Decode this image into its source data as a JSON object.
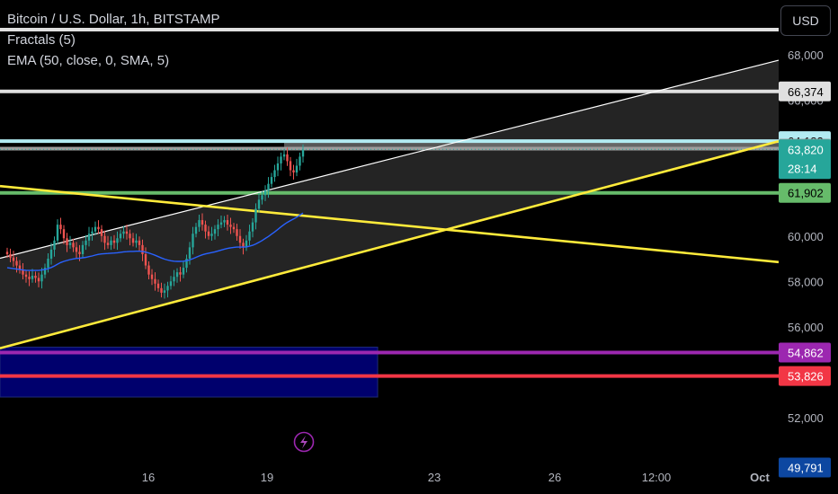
{
  "header": {
    "symbol_line": "Bitcoin / U.S. Dollar, 1h, BITSTAMP",
    "indicator_fractals": "Fractals (5)",
    "indicator_ema": "EMA (50, close, 0, SMA, 5)"
  },
  "currency_button": "USD",
  "colors": {
    "background": "#000000",
    "candle_up": "#26a69a",
    "candle_down": "#ef5350",
    "ema": "#2962ff",
    "yellow_line": "#ffeb3b",
    "green_level": "#66bb6a",
    "purple_level": "#9c27b0",
    "red_level": "#f23645",
    "navy_box": "#000080",
    "white_line": "#ffffff",
    "light_level": "#e0e0e0",
    "cyan_level": "#b2ebf2",
    "gray_level": "#9e9e9e"
  },
  "icons": {
    "lightning": "lightning-icon"
  },
  "chart_data": {
    "type": "line",
    "title": "Bitcoin / U.S. Dollar, 1h, BITSTAMP",
    "xlabel": "",
    "ylabel": "",
    "x_ticks": [
      "16",
      "19",
      "23",
      "26",
      "12:00",
      "Oct"
    ],
    "y_ticks": [
      "52,000",
      "54,000",
      "56,000",
      "58,000",
      "60,000",
      "62,000",
      "64,000",
      "66,000",
      "68,000"
    ],
    "ylim": [
      50700,
      69700
    ],
    "grid": false,
    "price_labels": [
      {
        "value": 66374,
        "text": "66,374",
        "bg": "#e0e0e0",
        "fg": "#000000"
      },
      {
        "value": 64182,
        "text": "64,182",
        "bg": "#b2ebf2",
        "fg": "#000000"
      },
      {
        "value": 63853,
        "text": "63,853",
        "bg": "#9e9e9e",
        "fg": "#000000"
      },
      {
        "value": 63820,
        "text": "63,820",
        "sub": "28:14",
        "bg": "#26a69a",
        "fg": "#ffffff"
      },
      {
        "value": 61902,
        "text": "61,902",
        "bg": "#66bb6a",
        "fg": "#000000"
      },
      {
        "value": 54862,
        "text": "54,862",
        "bg": "#9c27b0",
        "fg": "#ffffff"
      },
      {
        "value": 53826,
        "text": "53,826",
        "bg": "#f23645",
        "fg": "#ffffff"
      },
      {
        "value": 49791,
        "text": "49,791",
        "bg": "#0d47a1",
        "fg": "#ffffff"
      }
    ],
    "horizontal_levels": [
      {
        "value": 69100,
        "color": "#e0e0e0"
      },
      {
        "value": 66374,
        "color": "#e0e0e0"
      },
      {
        "value": 64182,
        "color": "#b2ebf2"
      },
      {
        "value": 63853,
        "color": "#9e9e9e"
      },
      {
        "value": 61902,
        "color": "#66bb6a"
      },
      {
        "value": 54862,
        "color": "#9c27b0"
      },
      {
        "value": 53826,
        "color": "#f23645"
      }
    ],
    "candle_closes": [
      59200,
      59050,
      58900,
      58700,
      58500,
      58300,
      58200,
      58100,
      58250,
      58150,
      58000,
      58300,
      58600,
      59000,
      59400,
      59800,
      60500,
      60300,
      59900,
      59600,
      59700,
      59500,
      59300,
      59200,
      59600,
      59800,
      60100,
      60200,
      60400,
      60300,
      60000,
      59700,
      59600,
      59800,
      59700,
      59900,
      60100,
      60200,
      60100,
      59900,
      59700,
      59800,
      59600,
      59200,
      58700,
      58300,
      58100,
      57900,
      57700,
      57500,
      57600,
      57800,
      58000,
      58200,
      58400,
      58300,
      58600,
      59000,
      59500,
      60100,
      60400,
      60700,
      60500,
      60200,
      60000,
      60100,
      60300,
      60500,
      60600,
      60700,
      60500,
      60400,
      60300,
      60000,
      59700,
      59500,
      59800,
      60200,
      60600,
      61200,
      61600,
      61800,
      62000,
      62300,
      62600,
      62900,
      63200,
      63500,
      63600,
      63300,
      62900,
      62800,
      63100,
      63500,
      63800
    ],
    "candle_start_x": 8,
    "candle_spacing_x": 3.5,
    "ema_values": [
      58600,
      58580,
      58560,
      58540,
      58520,
      58500,
      58490,
      58480,
      58480,
      58480,
      58480,
      58500,
      58520,
      58560,
      58610,
      58680,
      58760,
      58830,
      58880,
      58920,
      58960,
      58990,
      59010,
      59020,
      59040,
      59060,
      59090,
      59120,
      59160,
      59190,
      59210,
      59220,
      59230,
      59240,
      59250,
      59260,
      59280,
      59300,
      59310,
      59320,
      59320,
      59330,
      59330,
      59320,
      59290,
      59250,
      59200,
      59150,
      59090,
      59030,
      58980,
      58940,
      58910,
      58890,
      58880,
      58880,
      58890,
      58910,
      58950,
      59000,
      59060,
      59120,
      59170,
      59210,
      59240,
      59270,
      59300,
      59340,
      59380,
      59420,
      59450,
      59480,
      59500,
      59510,
      59510,
      59510,
      59520,
      59550,
      59590,
      59650,
      59720,
      59800,
      59890,
      59980,
      60080,
      60180,
      60290,
      60400,
      60510,
      60600,
      60680,
      60750,
      60830,
      60920,
      61010
    ],
    "trend_lines": [
      {
        "x1": 0,
        "y1": 59020,
        "x2": 866,
        "y2": 67750,
        "color": "#ffffff",
        "width": 1.2
      },
      {
        "x1": 0,
        "y1": 55050,
        "x2": 866,
        "y2": 64180,
        "color": "#ffeb3b",
        "width": 2.6
      },
      {
        "x1": 0,
        "y1": 62200,
        "x2": 866,
        "y2": 58850,
        "color": "#ffeb3b",
        "width": 2.6
      }
    ]
  }
}
